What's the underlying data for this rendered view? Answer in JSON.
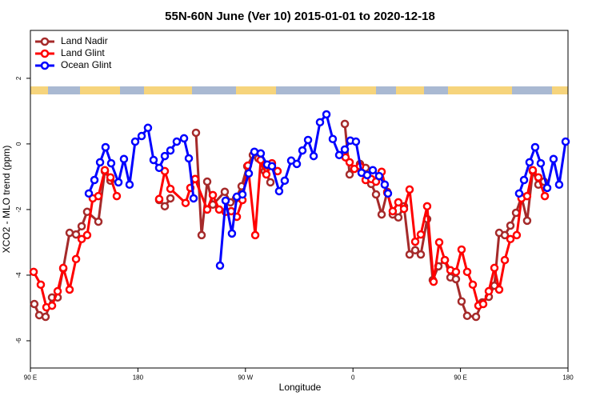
{
  "chart_data": {
    "type": "line",
    "title": "55N-60N June (Ver 10)   2015-01-01 to 2020-12-18",
    "x_label": "Longitude",
    "y_label": "XCO2 - MLO trend (ppm)",
    "xlim": [
      90,
      540
    ],
    "xticks": [
      {
        "value": 90,
        "label": "90 E"
      },
      180,
      {
        "value": 270,
        "label": "90 W"
      },
      {
        "value": 360,
        "label": "0"
      },
      {
        "value": 450,
        "label": "90 E"
      },
      {
        "value": 540,
        "label": "180"
      }
    ],
    "ylim": [
      -6.83,
      3.46
    ],
    "yticks": [
      -6,
      -4,
      -2,
      0,
      2
    ],
    "grid": false,
    "legend": "top-left",
    "series": [
      {
        "name": "Land Nadir",
        "color": "#a52a2a",
        "x": [
          93.3,
          97.4,
          102.7,
          108.1,
          112.8,
          117.5,
          122.8,
          128.2,
          132.9,
          137.5,
          146.9,
          152.3,
          157.0,
          null,
          197.8,
          202.5,
          207.2,
          null,
          228.6,
          233.3,
          238.0,
          242.7,
          252.7,
          257.4,
          262.1,
          266.8,
          271.5,
          276.2,
          280.8,
          286.2,
          290.9,
          null,
          353.2,
          357.2,
          365.9,
          370.6,
          375.3,
          379.3,
          384.0,
          388.7,
          393.3,
          398.0,
          402.7,
          407.4,
          412.1,
          416.8,
          422.1,
          426.8,
          431.5,
          436.9,
          441.6,
          446.2,
          450.9,
          455.6,
          463.0,
          468.3,
          473.7,
          478.4,
          482.4,
          487.1,
          491.8,
          496.5,
          501.1,
          505.8,
          510.5,
          515.2,
          519.9
        ],
        "values": [
          -4.88,
          -5.22,
          -5.27,
          -4.68,
          -4.68,
          -3.8,
          -2.71,
          -2.76,
          -2.51,
          -2.07,
          -2.37,
          -0.83,
          -1.12,
          null,
          -1.71,
          -1.9,
          -1.66,
          null,
          0.34,
          -2.78,
          -1.15,
          -1.85,
          -1.46,
          -1.78,
          -1.66,
          -1.29,
          -0.68,
          -0.34,
          -0.44,
          -0.83,
          -1.17,
          null,
          0.61,
          -0.93,
          -0.61,
          -0.73,
          -1.22,
          -1.54,
          -2.15,
          -1.46,
          -2.15,
          -2.24,
          -1.9,
          -3.37,
          -3.24,
          -3.37,
          -2.29,
          -4.15,
          -3.73,
          -3.54,
          -4.07,
          -4.12,
          -4.8,
          -5.24,
          -5.27,
          -4.83,
          -4.66,
          -4.32,
          -2.71,
          -2.78,
          -2.49,
          -2.1,
          -1.61,
          -2.34,
          -0.83,
          -1.24,
          -1.15
        ]
      },
      {
        "name": "Land Glint",
        "color": "#ff0000",
        "x": [
          92.7,
          98.7,
          103.4,
          108.1,
          112.8,
          117.5,
          122.8,
          128.2,
          132.9,
          137.5,
          142.2,
          146.9,
          152.3,
          157.0,
          162.3,
          null,
          197.8,
          202.5,
          207.2,
          219.9,
          223.9,
          227.9,
          238.0,
          242.7,
          248.0,
          253.4,
          258.1,
          262.8,
          267.5,
          272.1,
          278.2,
          282.8,
          287.5,
          292.2,
          296.9,
          null,
          353.8,
          357.2,
          361.2,
          365.9,
          370.6,
          375.3,
          379.3,
          384.0,
          388.7,
          393.3,
          398.0,
          402.7,
          407.4,
          412.1,
          416.8,
          422.1,
          427.5,
          432.2,
          436.9,
          441.6,
          446.2,
          450.9,
          455.6,
          460.3,
          465.0,
          469.0,
          473.7,
          478.4,
          482.4,
          487.1,
          491.8,
          497.1,
          501.1,
          505.8,
          510.5,
          515.2,
          520.6
        ],
        "values": [
          -3.9,
          -4.29,
          -4.98,
          -4.93,
          -4.49,
          -3.78,
          -4.44,
          -3.51,
          -2.9,
          -2.78,
          -1.66,
          -1.59,
          -0.8,
          -1.02,
          -1.59,
          null,
          -1.68,
          -0.83,
          -1.37,
          -1.8,
          -1.34,
          -1.07,
          -2.0,
          -1.56,
          -2.0,
          -2.07,
          -2.05,
          -2.22,
          -1.71,
          -0.66,
          -2.78,
          -0.49,
          -0.93,
          -0.59,
          -0.83,
          null,
          -0.41,
          -0.56,
          -0.76,
          -0.68,
          -1.1,
          -1.07,
          -1.15,
          -0.85,
          -1.49,
          -2.05,
          -1.78,
          -1.98,
          -1.39,
          -2.98,
          -2.76,
          -1.9,
          -4.2,
          -3.0,
          -3.54,
          -3.85,
          -3.9,
          -3.22,
          -3.9,
          -4.29,
          -4.93,
          -4.88,
          -4.49,
          -3.78,
          -4.44,
          -3.54,
          -2.9,
          -2.78,
          -1.66,
          -1.59,
          -0.8,
          -1.02,
          -1.59
        ]
      },
      {
        "name": "Ocean Glint",
        "color": "#0000ff",
        "x": [
          138.9,
          143.6,
          148.3,
          152.9,
          157.6,
          163.7,
          168.3,
          173.0,
          177.7,
          183.1,
          188.4,
          193.1,
          197.8,
          202.5,
          207.2,
          212.5,
          218.6,
          222.6,
          226.6,
          null,
          248.7,
          253.4,
          258.7,
          262.8,
          267.5,
          272.8,
          277.5,
          282.8,
          288.2,
          292.2,
          298.2,
          302.9,
          308.3,
          313.0,
          317.7,
          322.4,
          327.1,
          332.4,
          337.8,
          343.1,
          348.5,
          353.2,
          357.8,
          362.5,
          367.2,
          371.9,
          376.6,
          381.9,
          386.6,
          389.3,
          null,
          499.1,
          503.2,
          507.8,
          512.5,
          517.2,
          522.6,
          527.9,
          532.6,
          538.0
        ],
        "values": [
          -1.51,
          -1.1,
          -0.56,
          -0.1,
          -0.59,
          -1.17,
          -0.46,
          -1.24,
          0.07,
          0.24,
          0.49,
          -0.49,
          -0.73,
          -0.37,
          -0.2,
          0.07,
          0.17,
          -0.44,
          -1.66,
          null,
          -3.71,
          -1.73,
          -2.73,
          -1.61,
          -1.54,
          -0.9,
          -0.24,
          -0.29,
          -0.63,
          -0.68,
          -1.44,
          -1.12,
          -0.51,
          -0.61,
          -0.2,
          0.12,
          -0.37,
          0.66,
          0.9,
          0.15,
          -0.34,
          -0.17,
          0.1,
          0.07,
          -0.88,
          -0.95,
          -0.8,
          -0.98,
          -1.24,
          -1.51,
          null,
          -1.51,
          -1.1,
          -0.56,
          -0.1,
          -0.59,
          -1.34,
          -0.46,
          -1.24,
          0.07
        ]
      }
    ]
  }
}
